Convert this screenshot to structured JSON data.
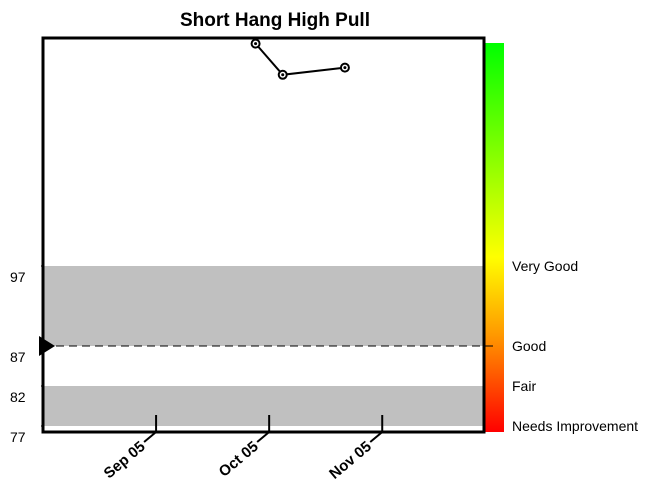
{
  "chart_data": {
    "type": "line",
    "title": "Short Hang High Pull",
    "x": [
      9.88,
      10.12,
      10.67
    ],
    "series": [
      {
        "color": "#000000",
        "values": [
          124.8,
          120.9,
          121.8
        ]
      }
    ],
    "xlim": [
      8,
      11.9
    ],
    "xticks": [
      {
        "value": 9,
        "label": "Sep 05"
      },
      {
        "value": 10,
        "label": "Oct 05"
      },
      {
        "value": 11,
        "label": "Nov 05"
      }
    ],
    "ylim": [
      76.25,
      125.5
    ],
    "yticks": [
      97,
      87,
      82,
      77
    ],
    "bands": [
      [
        77,
        82
      ],
      [
        87,
        97
      ]
    ],
    "band_color": "#c0c0c0",
    "target": 87,
    "rating_labels": [
      {
        "value": 97,
        "label": "Very Good"
      },
      {
        "value": 87,
        "label": "Good"
      },
      {
        "value": 82,
        "label": "Fair"
      },
      {
        "value": 77,
        "label": "Needs Improvement"
      }
    ]
  }
}
